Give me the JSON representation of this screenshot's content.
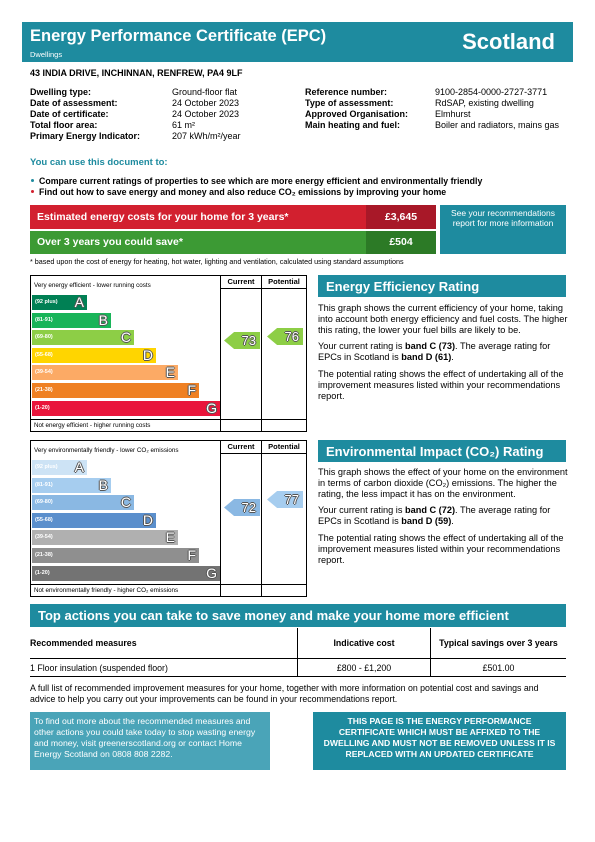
{
  "header": {
    "title": "Energy Performance Certificate (EPC)",
    "subtitle": "Dwellings",
    "country": "Scotland"
  },
  "address": "43 INDIA DRIVE, INCHINNAN, RENFREW, PA4 9LF",
  "details": {
    "left": [
      {
        "label": "Dwelling type:",
        "value": "Ground-floor flat"
      },
      {
        "label": "Date of assessment:",
        "value": "24 October 2023"
      },
      {
        "label": "Date of certificate:",
        "value": "24 October 2023"
      },
      {
        "label": "Total floor area:",
        "value": "61 m²"
      },
      {
        "label": "Primary Energy Indicator:",
        "value": "207 kWh/m²/year"
      }
    ],
    "right": [
      {
        "label": "Reference number:",
        "value": "9100-2854-0000-2727-3771"
      },
      {
        "label": "Type of assessment:",
        "value": "RdSAP, existing dwelling"
      },
      {
        "label": "Approved Organisation:",
        "value": "Elmhurst"
      },
      {
        "label": "Main heating and fuel:",
        "value": "Boiler and radiators, mains gas"
      }
    ]
  },
  "uses": {
    "heading": "You can use this document to:",
    "bullets": [
      "Compare current ratings of properties to see which are more energy efficient and environmentally friendly",
      "Find out how to save energy and money and also reduce CO₂ emissions by improving your home"
    ]
  },
  "costs": {
    "estimated_label": "Estimated energy costs for your home for 3 years*",
    "estimated_value": "£3,645",
    "save_label": "Over 3 years you could save*",
    "save_value": "£504",
    "note": "See your recommendations report for more information",
    "footnote": "* based upon the cost of energy for heating, hot water, lighting and ventilation, calculated using standard assumptions"
  },
  "energy_efficiency": {
    "heading": "Energy Efficiency Rating",
    "paragraph_1": "This graph shows the current efficiency of your home, taking into account both energy efficiency and fuel costs. The higher this rating, the lower your fuel bills are likely to be.",
    "paragraph_2": [
      "Your current rating is ",
      "band C (73)",
      ". The average rating for EPCs in Scotland is ",
      "band D (61)",
      "."
    ],
    "paragraph_3": "The potential rating shows the effect of undertaking all of the improvement measures listed within your recommendations report.",
    "chart": {
      "top_label": "Very energy efficient - lower running costs",
      "bottom_label": "Not energy efficient - higher running costs",
      "current_header": "Current",
      "potential_header": "Potential",
      "bands": [
        {
          "range": "(92 plus)",
          "letter": "A"
        },
        {
          "range": "(81-91)",
          "letter": "B"
        },
        {
          "range": "(69-80)",
          "letter": "C"
        },
        {
          "range": "(55-68)",
          "letter": "D"
        },
        {
          "range": "(39-54)",
          "letter": "E"
        },
        {
          "range": "(21-38)",
          "letter": "F"
        },
        {
          "range": "(1-20)",
          "letter": "G"
        }
      ],
      "current": 73,
      "potential": 76
    }
  },
  "environmental_impact": {
    "heading": "Environmental Impact (CO₂) Rating",
    "paragraph_1": "This graph shows the effect of your home on the environment in terms of carbon dioxide (CO₂) emissions. The higher the rating, the less impact it has on the environment.",
    "paragraph_2": [
      "Your current rating is ",
      "band C (72)",
      ". The average rating for EPCs in Scotland is ",
      "band D (59)",
      "."
    ],
    "paragraph_3": "The potential rating shows the effect of undertaking all of the improvement measures listed within your recommendations report.",
    "chart": {
      "top_label": "Very environmentally friendly - lower CO₂ emissions",
      "bottom_label": "Not environmentally friendly - higher CO₂ emissions",
      "current_header": "Current",
      "potential_header": "Potential",
      "bands": [
        {
          "range": "(92 plus)",
          "letter": "A"
        },
        {
          "range": "(81-91)",
          "letter": "B"
        },
        {
          "range": "(69-80)",
          "letter": "C"
        },
        {
          "range": "(55-68)",
          "letter": "D"
        },
        {
          "range": "(39-54)",
          "letter": "E"
        },
        {
          "range": "(21-38)",
          "letter": "F"
        },
        {
          "range": "(1-20)",
          "letter": "G"
        }
      ],
      "current": 72,
      "potential": 77
    }
  },
  "actions": {
    "heading": "Top actions you can take to save money and make your home more efficient",
    "table": {
      "headers": [
        "Recommended measures",
        "Indicative cost",
        "Typical savings over 3 years"
      ],
      "rows": [
        [
          "1 Floor insulation (suspended floor)",
          "£800 - £1,200",
          "£501.00"
        ]
      ]
    },
    "note": "A full list of recommended improvement measures for your home, together with more information on potential cost and savings and advice to help you carry out your improvements can be found in your recommendations report."
  },
  "footer": {
    "info": "To find out more about the recommended measures and other actions you could take today to stop wasting energy and money, visit greenerscotland.org or contact Home Energy Scotland on 0808 808 2282.",
    "notice": "THIS PAGE IS THE ENERGY PERFORMANCE CERTIFICATE WHICH MUST BE AFFIXED TO THE DWELLING AND MUST NOT BE REMOVED UNLESS IT IS REPLACED WITH AN UPDATED CERTIFICATE"
  }
}
